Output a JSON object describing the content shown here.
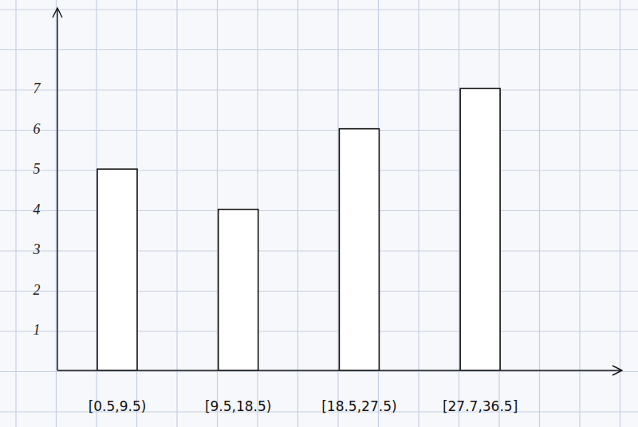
{
  "chart_data": {
    "type": "bar",
    "categories": [
      "[0.5,9.5)",
      "[9.5,18.5)",
      "[18.5,27.5)",
      "[27.7,36.5]"
    ],
    "values": [
      5,
      4,
      6,
      7
    ],
    "color": "#ffffff",
    "ylim": [
      0,
      9
    ],
    "yticks": [
      1,
      2,
      3,
      4,
      5,
      6,
      7
    ]
  }
}
